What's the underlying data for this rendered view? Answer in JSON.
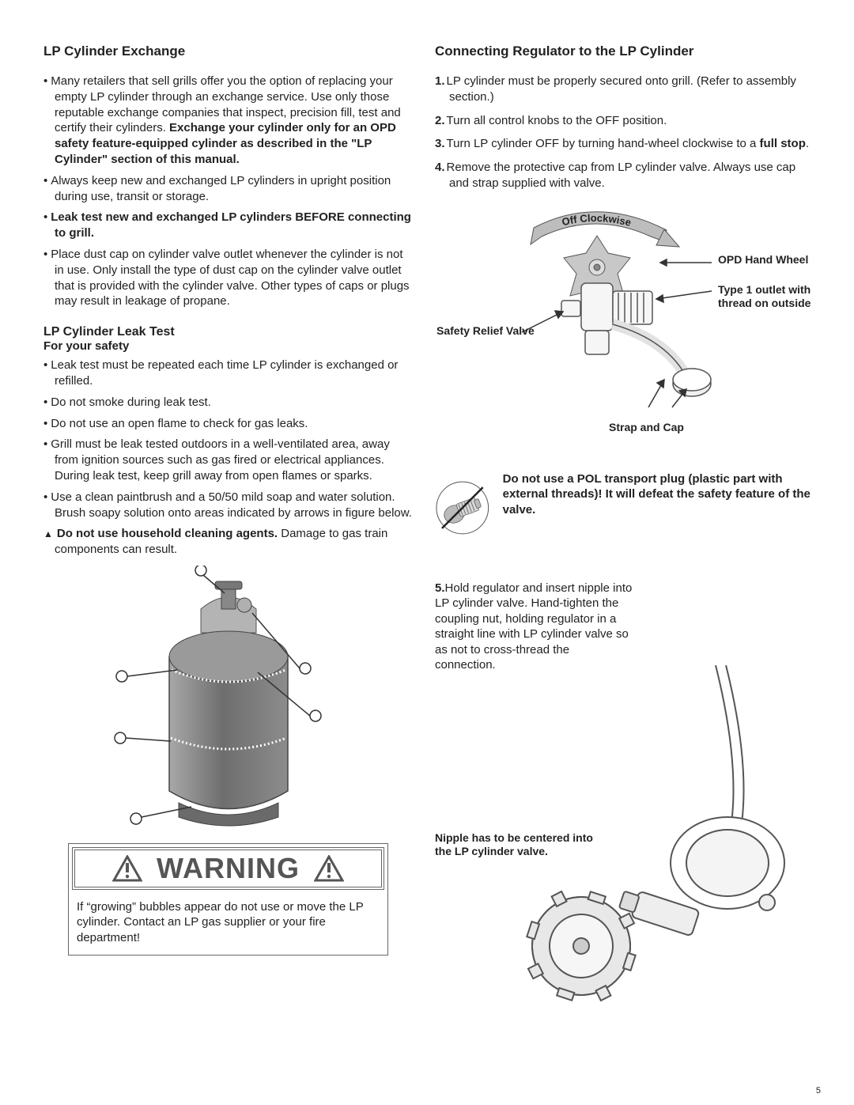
{
  "pageNumber": "5",
  "left": {
    "h1": "LP Cylinder Exchange",
    "bullets1": [
      {
        "pre": "Many retailers that sell grills offer you the option of replacing your empty LP cylinder through an exchange service. Use only those reputable exchange companies that inspect, precision fill, test and certify their cylinders.  ",
        "bold": "Exchange your cylinder only for an OPD safety feature-equipped cylinder as described in the \"LP Cylinder\" section of this manual.",
        "post": ""
      },
      {
        "pre": "Always keep new and exchanged LP cylinders in upright position during use, transit or storage.",
        "bold": "",
        "post": ""
      },
      {
        "pre": "",
        "bold": "Leak test new and exchanged LP cylinders BEFORE connecting to grill.",
        "post": ""
      },
      {
        "pre": "Place dust cap on cylinder valve outlet whenever the cylinder is not in use. Only install the type of dust cap on the cylinder valve outlet that is provided with the cylinder valve. Other types of caps or plugs may result in leakage of propane.",
        "bold": "",
        "post": ""
      }
    ],
    "h2": "LP Cylinder Leak Test",
    "h2sub": "For your safety",
    "bullets2": [
      {
        "tri": false,
        "pre": "Leak test must be repeated each time LP cylinder is exchanged or refilled.",
        "bold": "",
        "post": ""
      },
      {
        "tri": false,
        "pre": "Do not smoke during leak test.",
        "bold": "",
        "post": ""
      },
      {
        "tri": false,
        "pre": "Do not use an open flame to check for gas leaks.",
        "bold": "",
        "post": ""
      },
      {
        "tri": false,
        "pre": "Grill must be leak tested outdoors in a well-ventilated area, away from ignition sources such as gas fired or electrical appliances. During leak test, keep grill away from open flames or sparks.",
        "bold": "",
        "post": ""
      },
      {
        "tri": false,
        "pre": "Use a clean paintbrush and a 50/50 mild soap and water solution. Brush soapy solution onto areas indicated by arrows in figure below.",
        "bold": "",
        "post": ""
      },
      {
        "tri": true,
        "pre": "",
        "bold": "Do not use household cleaning agents.",
        "post": " Damage to gas train components can result."
      }
    ],
    "warnTitle": "WARNING",
    "warnText": "If “growing” bubbles appear do not use or move the LP cylinder. Contact an LP gas supplier or your fire department!"
  },
  "right": {
    "h1": "Connecting Regulator to the LP Cylinder",
    "steps14": [
      {
        "pre": "LP cylinder must be properly secured onto grill. (Refer to assembly section.)",
        "bold": "",
        "post": ""
      },
      {
        "pre": "Turn all control knobs to the OFF position.",
        "bold": "",
        "post": ""
      },
      {
        "pre": "Turn LP cylinder OFF by turning hand-wheel clockwise to a ",
        "bold": "full stop",
        "post": "."
      },
      {
        "pre": "Remove the protective cap from LP cylinder valve. Always use cap and strap supplied with valve.",
        "bold": "",
        "post": ""
      }
    ],
    "valveLabels": {
      "offClockwise": "Off Clockwise",
      "opd": "OPD Hand Wheel",
      "type1": "Type 1 outlet with thread on outside",
      "safety": "Safety Relief Valve",
      "strap": "Strap and Cap"
    },
    "polText": "Do not use a POL transport plug (plastic part with external threads)! It will defeat the safety feature of the valve.",
    "step5": "Hold regulator and insert nipple into LP cylinder valve. Hand-tighten the coupling nut, holding regulator in a straight line with LP cylinder valve so as not to cross-thread the connection.",
    "nippleNote": "Nipple has to be centered into the LP cylinder valve."
  },
  "colors": {
    "text": "#222222",
    "stroke": "#555555",
    "tankTop": "#999999",
    "tankMid": "#7a7a7a",
    "tankBot": "#5f5f5f",
    "valveGrey": "#bbbbbb",
    "lightFill": "#f6f6f6",
    "polGrey": "#aaaaaa",
    "nutGrey": "#cccccc"
  }
}
